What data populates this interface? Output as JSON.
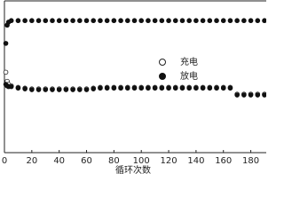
{
  "chart_data": {
    "type": "scatter",
    "x_label": "循环次数",
    "xlim": [
      0,
      190
    ],
    "xticks": [
      0,
      20,
      40,
      60,
      80,
      100,
      120,
      140,
      160,
      180
    ],
    "ylim": [
      0,
      100
    ],
    "x": [
      1,
      2,
      3,
      5,
      10,
      15,
      20,
      25,
      30,
      35,
      40,
      45,
      50,
      55,
      60,
      65,
      70,
      75,
      80,
      85,
      90,
      95,
      100,
      105,
      110,
      115,
      120,
      125,
      130,
      135,
      140,
      145,
      150,
      155,
      160,
      165,
      170,
      175,
      180,
      185,
      190
    ],
    "series": [
      {
        "name": "充电",
        "color": "#222222",
        "marker": "open",
        "values": [
          53,
          47,
          45,
          44,
          43,
          42.5,
          42,
          42,
          42,
          42,
          42,
          42,
          42,
          42,
          42,
          42.5,
          43,
          43,
          43,
          43,
          43,
          43,
          43,
          43,
          43,
          43,
          43,
          43,
          43,
          43,
          43,
          43,
          43,
          43,
          43,
          43,
          38.5,
          38.5,
          38.5,
          38.5,
          38.5
        ]
      },
      {
        "name": "放电",
        "color": "#111111",
        "marker": "filled",
        "values": [
          45,
          44,
          43.5,
          43.5,
          42.5,
          42,
          41.5,
          41.5,
          41.5,
          41.5,
          41.5,
          41.5,
          41.5,
          41.5,
          41.5,
          42,
          42.5,
          42.5,
          42.5,
          42.5,
          42.5,
          42.5,
          42.5,
          42.5,
          42.5,
          42.5,
          42.5,
          42.5,
          42.5,
          42.5,
          42.5,
          42.5,
          42.5,
          42.5,
          42.5,
          42.5,
          38,
          38,
          38,
          38,
          38
        ]
      },
      {
        "color": "#111111",
        "marker": "filled",
        "values": [
          72,
          84,
          86,
          87,
          87,
          87,
          87,
          87,
          87,
          87,
          87,
          87,
          87,
          87,
          87,
          87,
          87,
          87,
          87,
          87,
          87,
          87,
          87,
          87,
          87,
          87,
          87,
          87,
          87,
          87,
          87,
          87,
          87,
          87,
          87,
          87,
          87,
          87,
          87,
          87,
          87
        ]
      }
    ]
  }
}
